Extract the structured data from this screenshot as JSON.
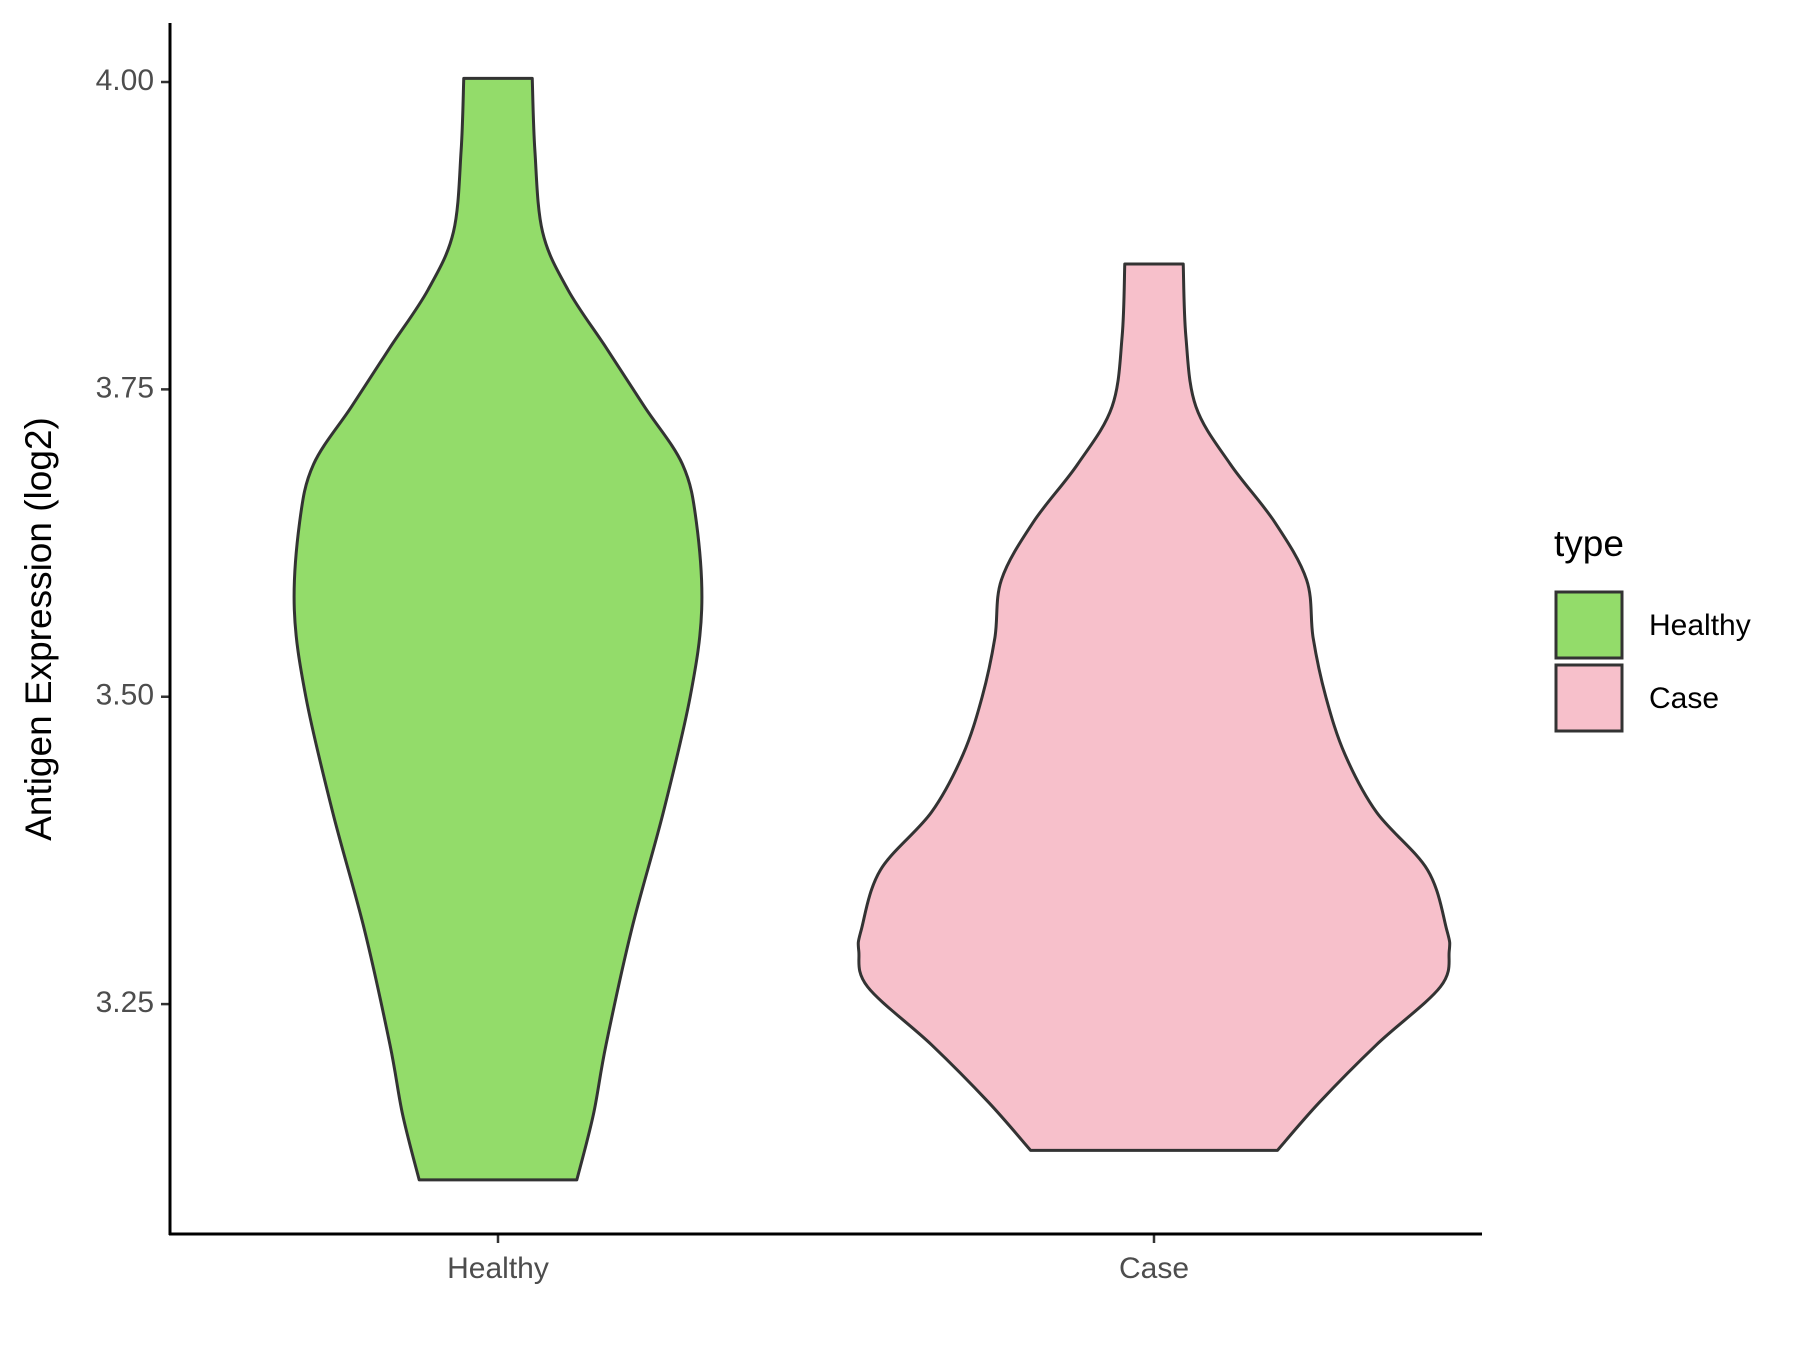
{
  "chart_data": {
    "type": "violin",
    "y_label": "Antigen Expression (log2)",
    "legend_title": "type",
    "categories": [
      "Healthy",
      "Case"
    ],
    "ylim": [
      3.063,
      4.048
    ],
    "yticks": [
      {
        "value": 3.25,
        "label": "3.25"
      },
      {
        "value": 3.5,
        "label": "3.50"
      },
      {
        "value": 3.75,
        "label": "3.75"
      },
      {
        "value": 4,
        "label": "4.00"
      }
    ],
    "legend_position": "right",
    "series": [
      {
        "name": "Healthy",
        "color": "#93dc6a",
        "y": [
          4.003,
          3.944,
          3.878,
          3.831,
          3.784,
          3.736,
          3.689,
          3.642,
          3.571,
          3.5,
          3.406,
          3.311,
          3.217,
          3.16,
          3.107
        ],
        "density": [
          0.116,
          0.125,
          0.151,
          0.237,
          0.366,
          0.496,
          0.625,
          0.672,
          0.69,
          0.651,
          0.56,
          0.453,
          0.366,
          0.323,
          0.267
        ]
      },
      {
        "name": "Case",
        "color": "#f7c0cb",
        "y": [
          3.852,
          3.793,
          3.736,
          3.689,
          3.642,
          3.595,
          3.548,
          3.5,
          3.453,
          3.406,
          3.359,
          3.311,
          3.293,
          3.264,
          3.217,
          3.17,
          3.131
        ],
        "density": [
          0.099,
          0.108,
          0.142,
          0.259,
          0.409,
          0.517,
          0.539,
          0.582,
          0.647,
          0.754,
          0.927,
          0.991,
          1,
          0.97,
          0.754,
          0.56,
          0.418
        ]
      }
    ]
  }
}
